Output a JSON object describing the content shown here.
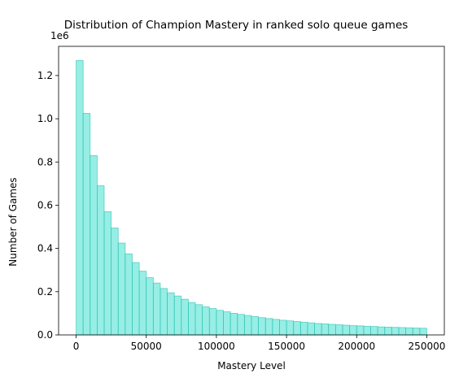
{
  "chart_data": {
    "type": "bar",
    "title": "Distribution of Champion Mastery in ranked solo queue games",
    "xlabel": "Mastery Level",
    "ylabel": "Number of Games",
    "y_offset_label": "1e6",
    "xlim": [
      -12500,
      262500
    ],
    "ylim": [
      0,
      1.335
    ],
    "bin_width": 5000,
    "bin_start": 0,
    "bar_color": "#40e0d0",
    "bar_edge_color": "#2fbfb0",
    "grid": false,
    "x_ticks": [
      0,
      50000,
      100000,
      150000,
      200000,
      250000
    ],
    "x_tick_labels": [
      "0",
      "50000",
      "100000",
      "150000",
      "200000",
      "250000"
    ],
    "y_ticks": [
      0.0,
      0.2,
      0.4,
      0.6,
      0.8,
      1.0,
      1.2
    ],
    "y_tick_labels": [
      "0.0",
      "0.2",
      "0.4",
      "0.6",
      "0.8",
      "1.0",
      "1.2"
    ],
    "values": [
      1.27,
      1.025,
      0.83,
      0.69,
      0.57,
      0.495,
      0.425,
      0.375,
      0.335,
      0.295,
      0.265,
      0.24,
      0.215,
      0.195,
      0.18,
      0.165,
      0.15,
      0.14,
      0.13,
      0.122,
      0.114,
      0.107,
      0.1,
      0.095,
      0.09,
      0.085,
      0.08,
      0.076,
      0.072,
      0.068,
      0.065,
      0.062,
      0.059,
      0.056,
      0.053,
      0.051,
      0.049,
      0.047,
      0.045,
      0.043,
      0.042,
      0.04,
      0.039,
      0.037,
      0.036,
      0.035,
      0.034,
      0.033,
      0.032,
      0.031
    ]
  }
}
